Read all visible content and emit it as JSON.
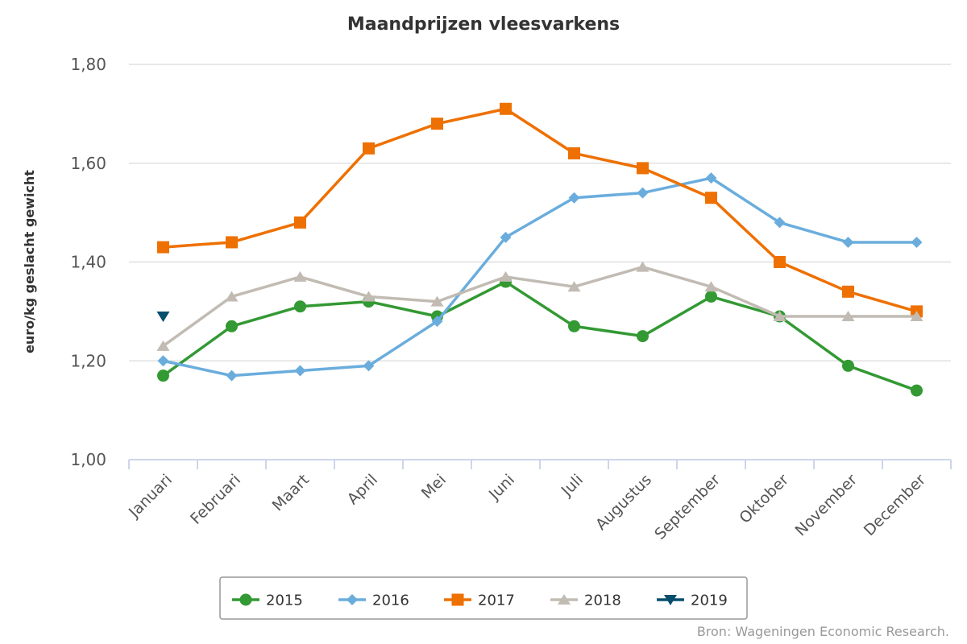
{
  "chart_data": {
    "type": "line",
    "title": "Maandprijzen vleesvarkens",
    "xlabel": "",
    "ylabel": "euro/kg geslacht gewicht",
    "ylim": [
      1.0,
      1.8
    ],
    "yticks": [
      1.0,
      1.2,
      1.4,
      1.6,
      1.8
    ],
    "ytick_labels": [
      "1,00",
      "1,20",
      "1,40",
      "1,60",
      "1,80"
    ],
    "categories": [
      "Januari",
      "Februari",
      "Maart",
      "April",
      "Mei",
      "Juni",
      "Juli",
      "Augustus",
      "September",
      "Oktober",
      "November",
      "December"
    ],
    "grid": true,
    "legend_position": "bottom",
    "series": [
      {
        "name": "2015",
        "color": "#339933",
        "marker": "circle",
        "values": [
          1.17,
          1.27,
          1.31,
          1.32,
          1.29,
          1.36,
          1.27,
          1.25,
          1.33,
          1.29,
          1.19,
          1.14
        ]
      },
      {
        "name": "2016",
        "color": "#6aaddd",
        "marker": "diamond",
        "values": [
          1.2,
          1.17,
          1.18,
          1.19,
          1.28,
          1.45,
          1.53,
          1.54,
          1.57,
          1.48,
          1.44,
          1.44
        ]
      },
      {
        "name": "2017",
        "color": "#ee7000",
        "marker": "square",
        "values": [
          1.43,
          1.44,
          1.48,
          1.63,
          1.68,
          1.71,
          1.62,
          1.59,
          1.53,
          1.4,
          1.34,
          1.3
        ]
      },
      {
        "name": "2018",
        "color": "#c1bbb3",
        "marker": "triangle",
        "values": [
          1.23,
          1.33,
          1.37,
          1.33,
          1.32,
          1.37,
          1.35,
          1.39,
          1.35,
          1.29,
          1.29,
          1.29
        ]
      },
      {
        "name": "2019",
        "color": "#064e6e",
        "marker": "triangle-down",
        "values": [
          1.29,
          null,
          null,
          null,
          null,
          null,
          null,
          null,
          null,
          null,
          null,
          null
        ]
      }
    ]
  },
  "source": "Bron: Wageningen Economic Research."
}
